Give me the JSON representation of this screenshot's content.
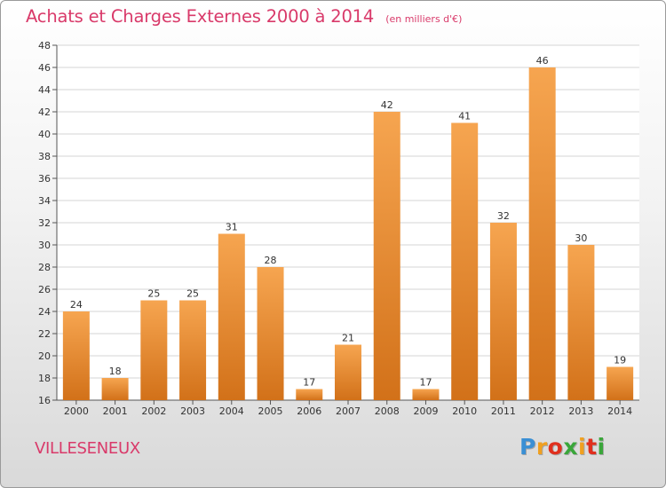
{
  "header": {
    "title": "Achats et Charges Externes 2000 à 2014",
    "subtitle": "(en milliers d'€)"
  },
  "footer": {
    "commune": "VILLESENEUX",
    "logo_letters": [
      "P",
      "r",
      "o",
      "x",
      "i",
      "t",
      "i"
    ],
    "logo_colors": [
      "#3a8fd4",
      "#f0a020",
      "#e0301e",
      "#3aa63a",
      "#f0a020",
      "#e0301e",
      "#3aa63a"
    ]
  },
  "colors": {
    "bar_light": "#f6a550",
    "bar_dark": "#d27119",
    "title": "#d93a6a"
  },
  "chart_data": {
    "type": "bar",
    "title": "Achats et Charges Externes 2000 à 2014",
    "subtitle": "(en milliers d'€)",
    "xlabel": "",
    "ylabel": "",
    "categories": [
      "2000",
      "2001",
      "2002",
      "2003",
      "2004",
      "2005",
      "2006",
      "2007",
      "2008",
      "2009",
      "2010",
      "2011",
      "2012",
      "2013",
      "2014"
    ],
    "values": [
      24,
      18,
      25,
      25,
      31,
      28,
      17,
      21,
      42,
      17,
      41,
      32,
      46,
      30,
      19
    ],
    "ylim": [
      16,
      48
    ],
    "yticks": [
      16,
      18,
      20,
      22,
      24,
      26,
      28,
      30,
      32,
      34,
      36,
      38,
      40,
      42,
      44,
      46,
      48
    ],
    "grid": true,
    "legend": "none"
  }
}
